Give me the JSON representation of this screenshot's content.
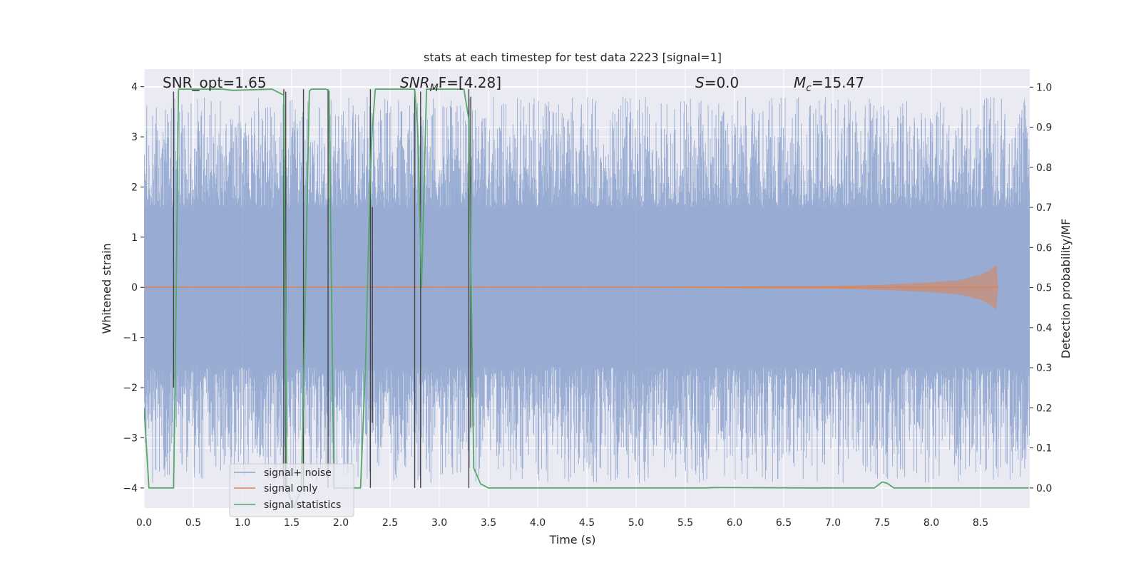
{
  "chart_data": {
    "type": "line",
    "title": "stats at each timestep for test data 2223 [signal=1]",
    "xlabel": "Time (s)",
    "ylabel": "Whitened strain",
    "ylabel_right": "Detection probability/MF",
    "xlim": [
      0,
      9
    ],
    "ylim": [
      -4.4,
      4.35
    ],
    "ylim_right": [
      -0.05,
      1.045
    ],
    "x_ticks": [
      "0.0",
      "0.5",
      "1.0",
      "1.5",
      "2.0",
      "2.5",
      "3.0",
      "3.5",
      "4.0",
      "4.5",
      "5.0",
      "5.5",
      "6.0",
      "6.5",
      "7.0",
      "7.5",
      "8.0",
      "8.5"
    ],
    "y_ticks": [
      "−4",
      "−3",
      "−2",
      "−1",
      "0",
      "1",
      "2",
      "3",
      "4"
    ],
    "y_ticks_right": [
      "0.0",
      "0.1",
      "0.2",
      "0.3",
      "0.4",
      "0.5",
      "0.6",
      "0.7",
      "0.8",
      "0.9",
      "1.0"
    ],
    "annotations": {
      "snr_opt": "SNR_opt=1.65",
      "snr_mf_var": "SNR",
      "snr_mf_sub": "M",
      "snr_mf_rest": "F=[4.28]",
      "s_var": "S",
      "s_rest": "=0.0",
      "mc_var": "M",
      "mc_sub": "c",
      "mc_rest": "=15.47"
    },
    "legend": [
      "signal+ noise",
      "signal only",
      "signal statistics"
    ],
    "legend_position": "lower-left",
    "colors": {
      "noise": "#8fa5cf",
      "signal": "#dd8452",
      "stats": "#55a868",
      "vlines": "#444444",
      "background": "#eaeaf2",
      "grid": "#ffffff"
    },
    "noise_envelope": {
      "description_free": true,
      "band_low": -1.6,
      "band_high": 1.6,
      "peak_min": -3.9,
      "peak_max": 3.8
    },
    "signal_only": {
      "t": [
        0.0,
        5.0,
        6.0,
        7.0,
        7.5,
        8.0,
        8.3,
        8.5,
        8.6,
        8.66,
        8.68
      ],
      "amp": [
        0.01,
        0.01,
        0.02,
        0.03,
        0.05,
        0.1,
        0.15,
        0.25,
        0.35,
        0.45,
        0.0
      ]
    },
    "signal_statistics": {
      "t": [
        0.0,
        0.05,
        0.1,
        0.3,
        0.32,
        0.35,
        0.4,
        0.8,
        0.9,
        1.3,
        1.42,
        1.45,
        1.52,
        1.6,
        1.64,
        1.68,
        1.7,
        1.85,
        1.88,
        1.93,
        2.0,
        2.2,
        2.25,
        2.3,
        2.32,
        2.35,
        2.45,
        2.75,
        2.78,
        2.82,
        2.87,
        2.92,
        3.25,
        3.3,
        3.35,
        3.42,
        3.5,
        5.7,
        5.8,
        7.0,
        7.42,
        7.5,
        7.55,
        7.62,
        8.99
      ],
      "p": [
        0.2,
        0.0,
        0.0,
        0.0,
        0.35,
        0.995,
        0.995,
        0.995,
        0.992,
        0.995,
        0.98,
        0.0,
        -0.05,
        0.0,
        0.5,
        0.99,
        0.995,
        0.995,
        0.99,
        0.0,
        0.0,
        0.0,
        0.3,
        0.8,
        0.9,
        0.995,
        0.995,
        0.995,
        0.9,
        0.5,
        0.995,
        0.995,
        0.995,
        0.92,
        0.05,
        0.01,
        0.0,
        0.0,
        0.001,
        0.0,
        0.0,
        0.015,
        0.012,
        0.0,
        0.0
      ]
    },
    "vertical_lines": {
      "x": [
        0.3,
        1.42,
        1.44,
        1.62,
        1.87,
        2.3,
        2.32,
        2.75,
        2.81,
        3.3,
        3.32
      ],
      "y_bottom": [
        -2.0,
        -4.0,
        -4.0,
        -4.0,
        -4.0,
        -4.0,
        -2.7,
        -4.0,
        -4.0,
        -4.0,
        -2.8
      ],
      "y_top": [
        3.9,
        3.95,
        3.9,
        3.95,
        3.95,
        3.95,
        1.6,
        3.95,
        3.9,
        3.95,
        3.8
      ]
    }
  }
}
